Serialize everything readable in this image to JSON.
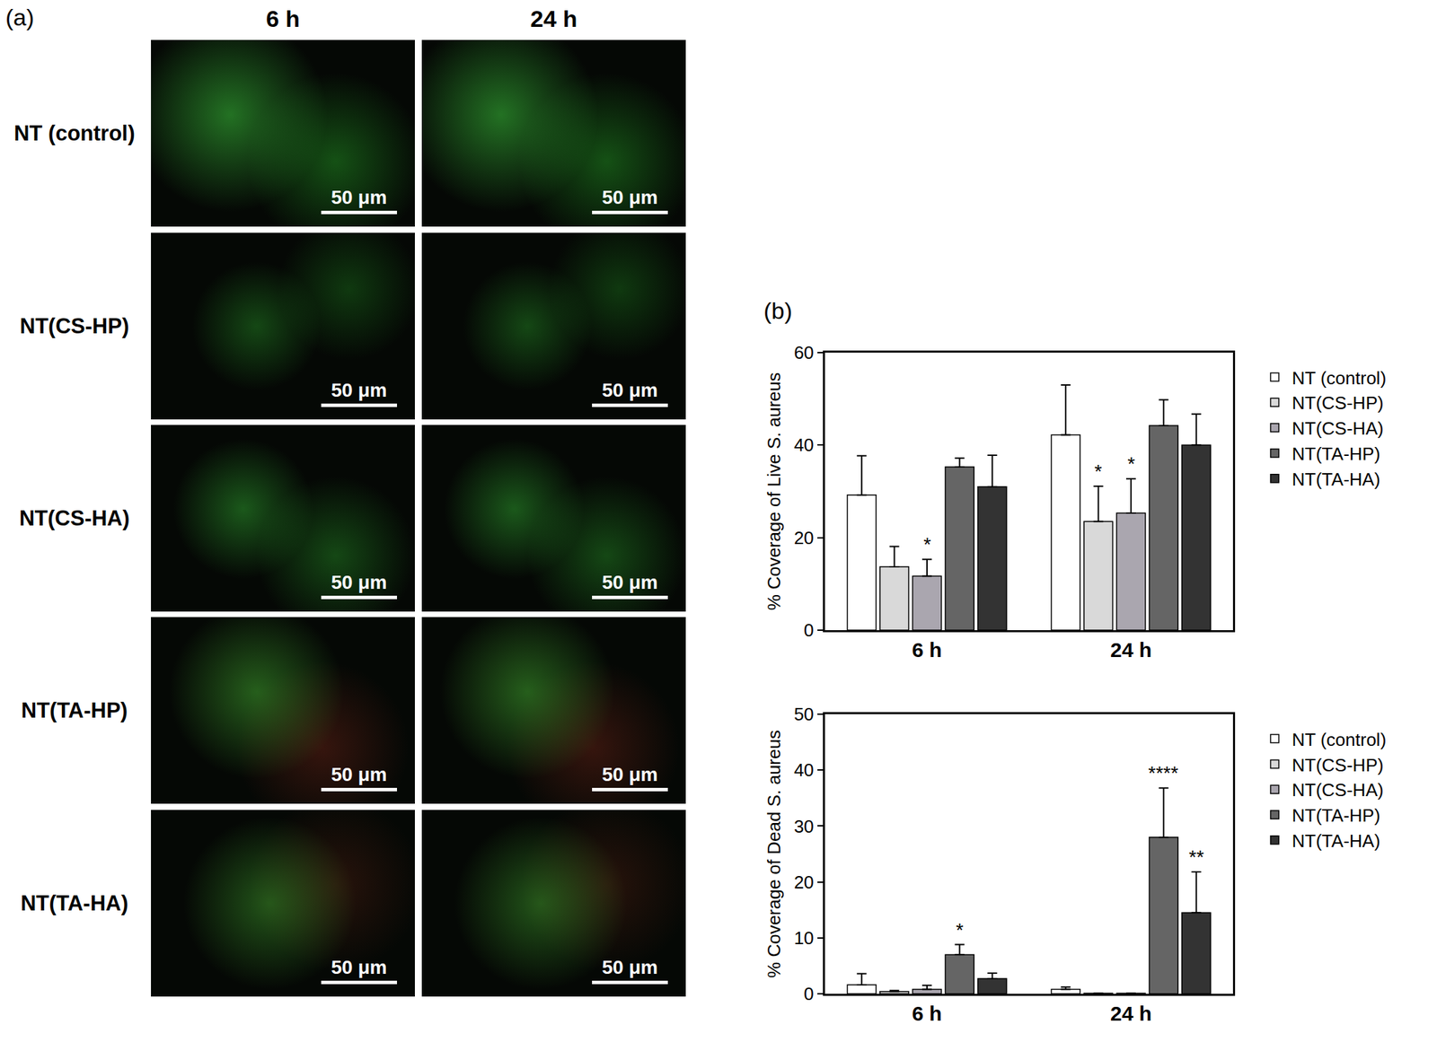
{
  "panel_a": {
    "label": "(a)",
    "columns": [
      "6 h",
      "24 h"
    ],
    "rows": [
      "NT (control)",
      "NT(CS-HP)",
      "NT(CS-HA)",
      "NT(TA-HP)",
      "NT(TA-HA)"
    ],
    "scale_bar": "50 μm"
  },
  "panel_b_label": "(b)",
  "chart_data": [
    {
      "type": "bar",
      "y_label": "% Coverage of Live S. aureus",
      "categories": [
        "6 h",
        "24 h"
      ],
      "ylim": [
        0,
        60
      ],
      "yticks": [
        0,
        20,
        40,
        60
      ],
      "grid": false,
      "legend": "right",
      "series": [
        {
          "name": "NT (control)",
          "color": "#ffffff",
          "values": [
            29.2,
            42.2
          ],
          "errors": [
            8.5,
            10.8
          ],
          "significance": [
            null,
            null
          ]
        },
        {
          "name": "NT(CS-HP)",
          "color": "#d9d9d9",
          "values": [
            13.7,
            23.5
          ],
          "errors": [
            4.4,
            7.6
          ],
          "significance": [
            null,
            "*"
          ]
        },
        {
          "name": "NT(CS-HA)",
          "color": "#aaa6af",
          "values": [
            11.7,
            25.3
          ],
          "errors": [
            3.6,
            7.4
          ],
          "significance": [
            "*",
            "*"
          ]
        },
        {
          "name": "NT(TA-HP)",
          "color": "#656565",
          "values": [
            35.3,
            44.2
          ],
          "errors": [
            1.9,
            5.6
          ],
          "significance": [
            null,
            null
          ]
        },
        {
          "name": "NT(TA-HA)",
          "color": "#333333",
          "values": [
            31.0,
            40.0
          ],
          "errors": [
            6.8,
            6.7
          ],
          "significance": [
            null,
            null
          ]
        }
      ]
    },
    {
      "type": "bar",
      "y_label": "% Coverage of Dead S. aureus",
      "categories": [
        "6 h",
        "24 h"
      ],
      "ylim": [
        0,
        50
      ],
      "yticks": [
        0,
        10,
        20,
        30,
        40,
        50
      ],
      "grid": false,
      "legend": "right",
      "series": [
        {
          "name": "NT (control)",
          "color": "#ffffff",
          "values": [
            1.6,
            0.8
          ],
          "errors": [
            2.0,
            0.4
          ],
          "significance": [
            null,
            null
          ]
        },
        {
          "name": "NT(CS-HP)",
          "color": "#d9d9d9",
          "values": [
            0.4,
            0.1
          ],
          "errors": [
            0.2,
            0.0
          ],
          "significance": [
            null,
            null
          ]
        },
        {
          "name": "NT(CS-HA)",
          "color": "#aaa6af",
          "values": [
            0.8,
            0.1
          ],
          "errors": [
            0.7,
            0.0
          ],
          "significance": [
            null,
            null
          ]
        },
        {
          "name": "NT(TA-HP)",
          "color": "#656565",
          "values": [
            7.0,
            28.0
          ],
          "errors": [
            1.8,
            8.8
          ],
          "significance": [
            "*",
            "****"
          ]
        },
        {
          "name": "NT(TA-HA)",
          "color": "#333333",
          "values": [
            2.7,
            14.5
          ],
          "errors": [
            1.0,
            7.3
          ],
          "significance": [
            null,
            "**"
          ]
        }
      ]
    }
  ]
}
